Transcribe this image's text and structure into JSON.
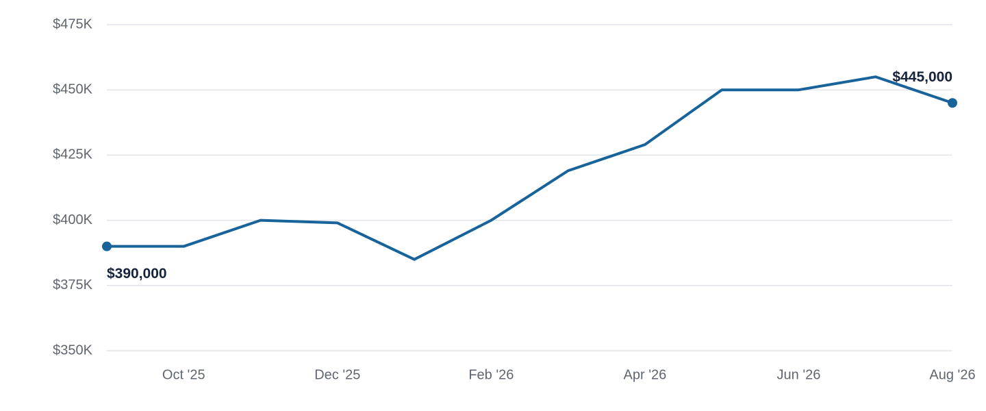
{
  "chart_data": {
    "type": "line",
    "categories": [
      null,
      "Oct '25",
      null,
      "Dec '25",
      null,
      "Feb '26",
      null,
      "Apr '26",
      null,
      "Jun '26",
      null,
      "Aug '26"
    ],
    "values": [
      390000,
      390000,
      400000,
      399000,
      385000,
      400000,
      419000,
      429000,
      450000,
      450000,
      455000,
      445000
    ],
    "value_labels": [
      "$390,000",
      null,
      null,
      null,
      null,
      null,
      null,
      null,
      null,
      null,
      null,
      "$445,000"
    ],
    "color": "#17639a",
    "ylim": [
      350000,
      475000
    ],
    "yticks": [
      {
        "value": 350000,
        "label": "$350K"
      },
      {
        "value": 375000,
        "label": "$375K"
      },
      {
        "value": 400000,
        "label": "$400K"
      },
      {
        "value": 425000,
        "label": "$425K"
      },
      {
        "value": 450000,
        "label": "$450K"
      },
      {
        "value": 475000,
        "label": "$475K"
      }
    ],
    "grid": true
  }
}
